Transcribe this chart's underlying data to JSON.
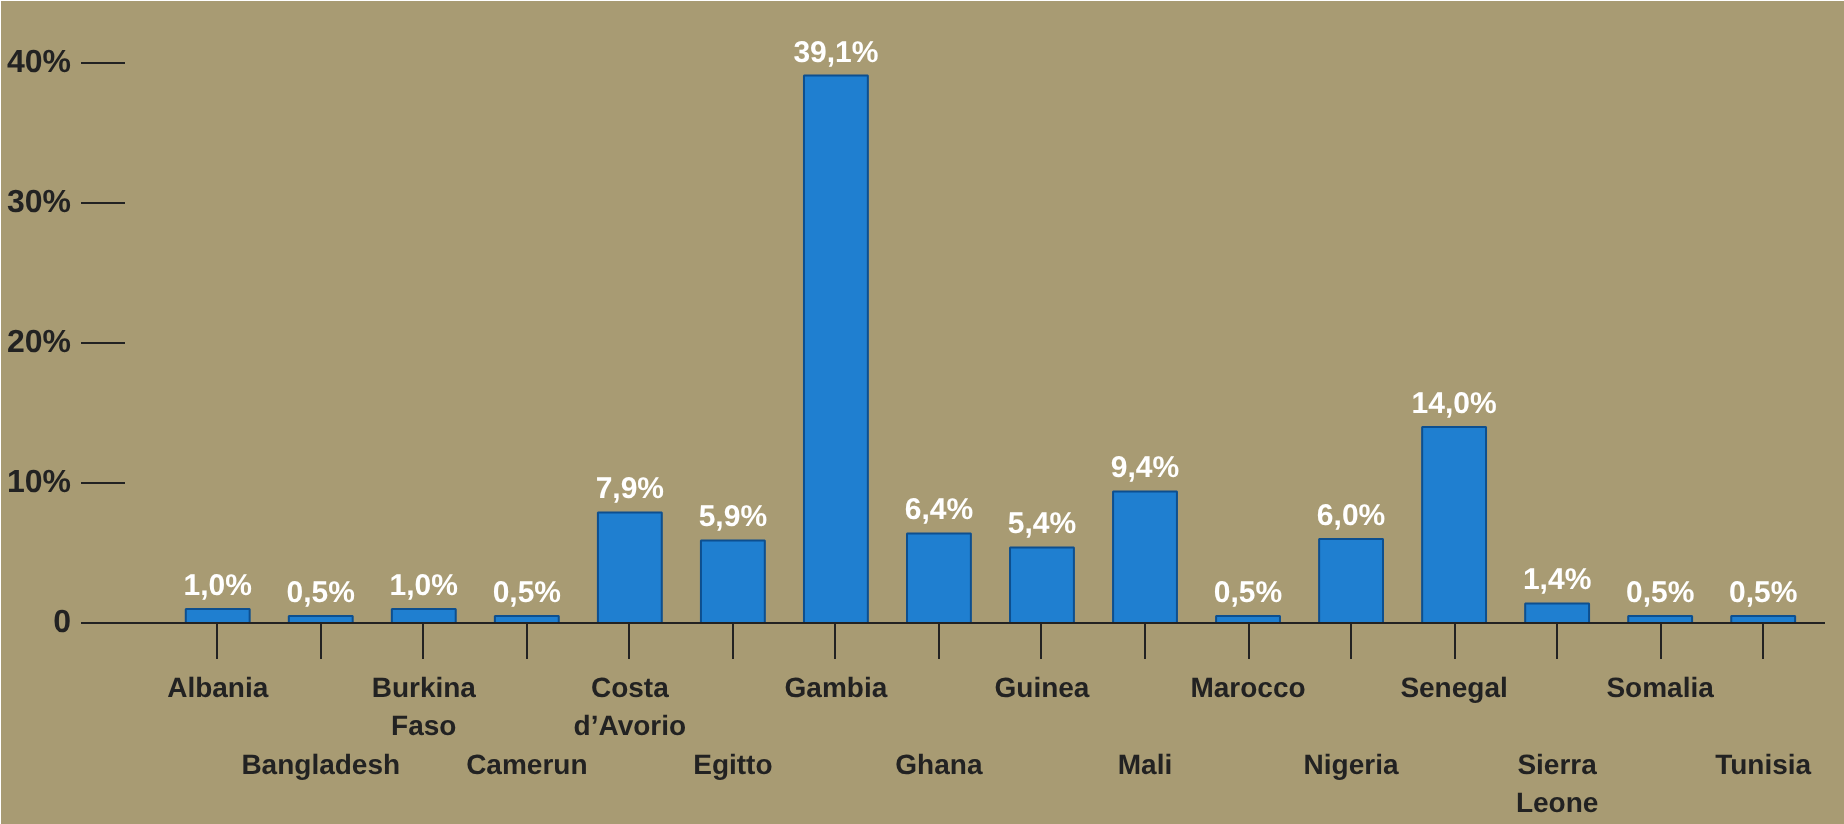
{
  "chart_data": {
    "type": "bar",
    "categories": [
      "Albania",
      "Bangladesh",
      "Burkina Faso",
      "Camerun",
      "Costa d’Avorio",
      "Egitto",
      "Gambia",
      "Ghana",
      "Guinea",
      "Mali",
      "Marocco",
      "Nigeria",
      "Senegal",
      "Sierra Leone",
      "Somalia",
      "Tunisia"
    ],
    "values": [
      1.0,
      0.5,
      1.0,
      0.5,
      7.9,
      5.9,
      39.1,
      6.4,
      5.4,
      9.4,
      0.5,
      6.0,
      14.0,
      1.4,
      0.5,
      0.5
    ],
    "value_labels": [
      "1,0%",
      "0,5%",
      "1,0%",
      "0,5%",
      "7,9%",
      "5,9%",
      "39,1%",
      "6,4%",
      "5,4%",
      "9,4%",
      "0,5%",
      "6,0%",
      "14,0%",
      "1,4%",
      "0,5%",
      "0,5%"
    ],
    "color": "#1f7fd0",
    "ylim": [
      0,
      43
    ],
    "yticks": [
      {
        "value": 0,
        "label": "0"
      },
      {
        "value": 10,
        "label": "10%"
      },
      {
        "value": 20,
        "label": "20%"
      },
      {
        "value": 30,
        "label": "30%"
      },
      {
        "value": 40,
        "label": "40%"
      }
    ],
    "grid": false
  }
}
